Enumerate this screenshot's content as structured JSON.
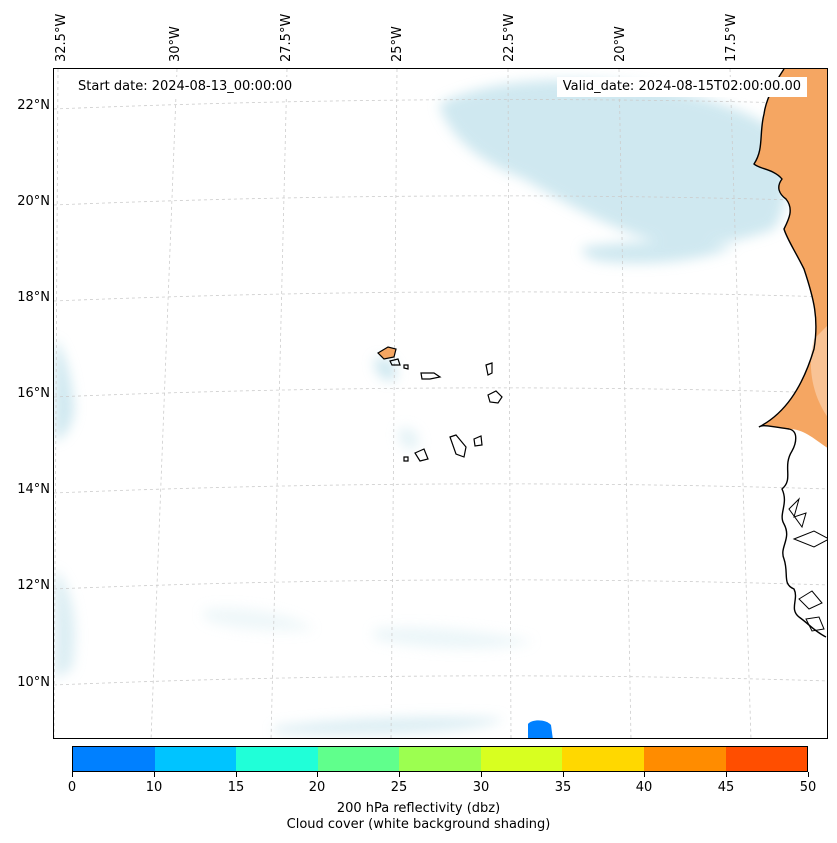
{
  "map": {
    "longitude_labels": [
      "32.5°W",
      "30°W",
      "27.5°W",
      "25°W",
      "22.5°W",
      "20°W",
      "17.5°W"
    ],
    "latitude_labels": [
      "22°N",
      "20°N",
      "18°N",
      "16°N",
      "14°N",
      "12°N",
      "10°N"
    ],
    "start_date": "Start date: 2024-08-13_00:00:00",
    "valid_date": "Valid_date: 2024-08-15T02:00:00.00",
    "features": [
      "Cape Verde islands",
      "West African coastline",
      "cloud cover shading",
      "reflectivity patch"
    ]
  },
  "colorbar": {
    "ticks": [
      "0",
      "10",
      "15",
      "20",
      "25",
      "30",
      "35",
      "40",
      "45",
      "50"
    ],
    "colors": [
      "#0080ff",
      "#00c4ff",
      "#20ffd8",
      "#60ff8c",
      "#9cff50",
      "#d8ff20",
      "#ffd800",
      "#ff8c00",
      "#ff4e00"
    ],
    "title_line1": "200 hPa reflectivity (dbz)",
    "title_line2": "Cloud cover (white background shading)"
  },
  "colors": {
    "land": "#f5a662",
    "cloud": "#a8d6e4",
    "grid": "#cccccc",
    "coast": "#000000"
  }
}
